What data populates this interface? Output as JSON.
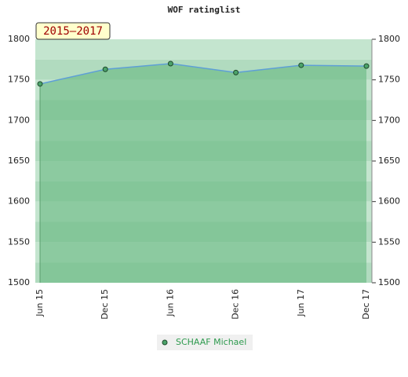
{
  "chart_data": {
    "type": "line",
    "title": "WOF ratinglist",
    "subtitle": "2015–2017",
    "categories": [
      "Jun 15",
      "Dec 15",
      "Jun 16",
      "Dec 16",
      "Jun 17",
      "Dec 17"
    ],
    "series": [
      {
        "name": "SCHAAF Michael",
        "color": "#5e9fd6",
        "marker_color": "#4ca36a",
        "fill": "#5fb57a",
        "values": [
          1745,
          1763,
          1770,
          1759,
          1768,
          1767
        ]
      }
    ],
    "ylim": [
      1500,
      1800
    ],
    "yticks": [
      1500,
      1550,
      1600,
      1650,
      1700,
      1750,
      1800
    ],
    "grid": true
  }
}
